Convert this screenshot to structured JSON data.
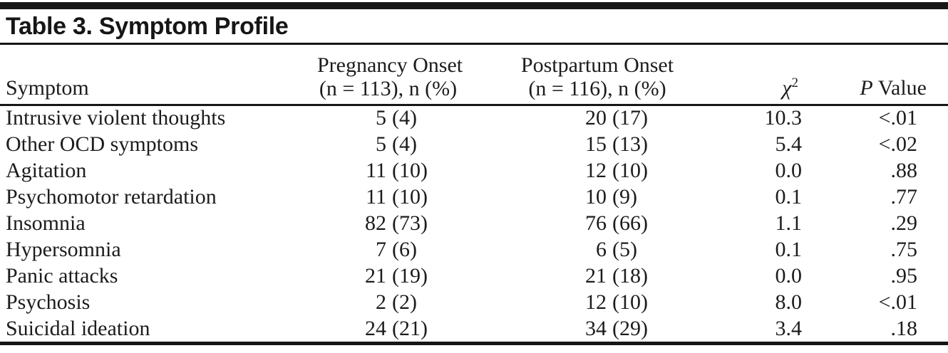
{
  "table": {
    "title": "Table 3. Symptom Profile",
    "header": {
      "symptom": "Symptom",
      "pregnancy": {
        "line1": "Pregnancy Onset",
        "line2": "(n = 113), n (%)"
      },
      "postpartum": {
        "line1": "Postpartum Onset",
        "line2": "(n = 116), n (%)"
      },
      "chi_square": {
        "base": "χ",
        "sup": "2"
      },
      "p_value": {
        "italic": "P",
        "rest": " Value"
      }
    },
    "rows": [
      {
        "symptom": "Intrusive violent thoughts",
        "pregnancy_n": "5",
        "pregnancy_pct": "(4)",
        "postpartum_n": "20",
        "postpartum_pct": "(17)",
        "chi_square": "10.3",
        "p_value": "<.01"
      },
      {
        "symptom": "Other OCD symptoms",
        "pregnancy_n": "5",
        "pregnancy_pct": "(4)",
        "postpartum_n": "15",
        "postpartum_pct": "(13)",
        "chi_square": "5.4",
        "p_value": "<.02"
      },
      {
        "symptom": "Agitation",
        "pregnancy_n": "11",
        "pregnancy_pct": "(10)",
        "postpartum_n": "12",
        "postpartum_pct": "(10)",
        "chi_square": "0.0",
        "p_value": ".88"
      },
      {
        "symptom": "Psychomotor retardation",
        "pregnancy_n": "11",
        "pregnancy_pct": "(10)",
        "postpartum_n": "10",
        "postpartum_pct": "(9)",
        "chi_square": "0.1",
        "p_value": ".77"
      },
      {
        "symptom": "Insomnia",
        "pregnancy_n": "82",
        "pregnancy_pct": "(73)",
        "postpartum_n": "76",
        "postpartum_pct": "(66)",
        "chi_square": "1.1",
        "p_value": ".29"
      },
      {
        "symptom": "Hypersomnia",
        "pregnancy_n": "7",
        "pregnancy_pct": "(6)",
        "postpartum_n": "6",
        "postpartum_pct": "(5)",
        "chi_square": "0.1",
        "p_value": ".75"
      },
      {
        "symptom": "Panic attacks",
        "pregnancy_n": "21",
        "pregnancy_pct": "(19)",
        "postpartum_n": "21",
        "postpartum_pct": "(18)",
        "chi_square": "0.0",
        "p_value": ".95"
      },
      {
        "symptom": "Psychosis",
        "pregnancy_n": "2",
        "pregnancy_pct": "(2)",
        "postpartum_n": "12",
        "postpartum_pct": "(10)",
        "chi_square": "8.0",
        "p_value": "<.01"
      },
      {
        "symptom": "Suicidal ideation",
        "pregnancy_n": "24",
        "pregnancy_pct": "(21)",
        "postpartum_n": "34",
        "postpartum_pct": "(29)",
        "chi_square": "3.4",
        "p_value": ".18"
      }
    ],
    "colors": {
      "rule": "#161616",
      "text": "#1c1c1c",
      "background": "#ffffff"
    }
  }
}
